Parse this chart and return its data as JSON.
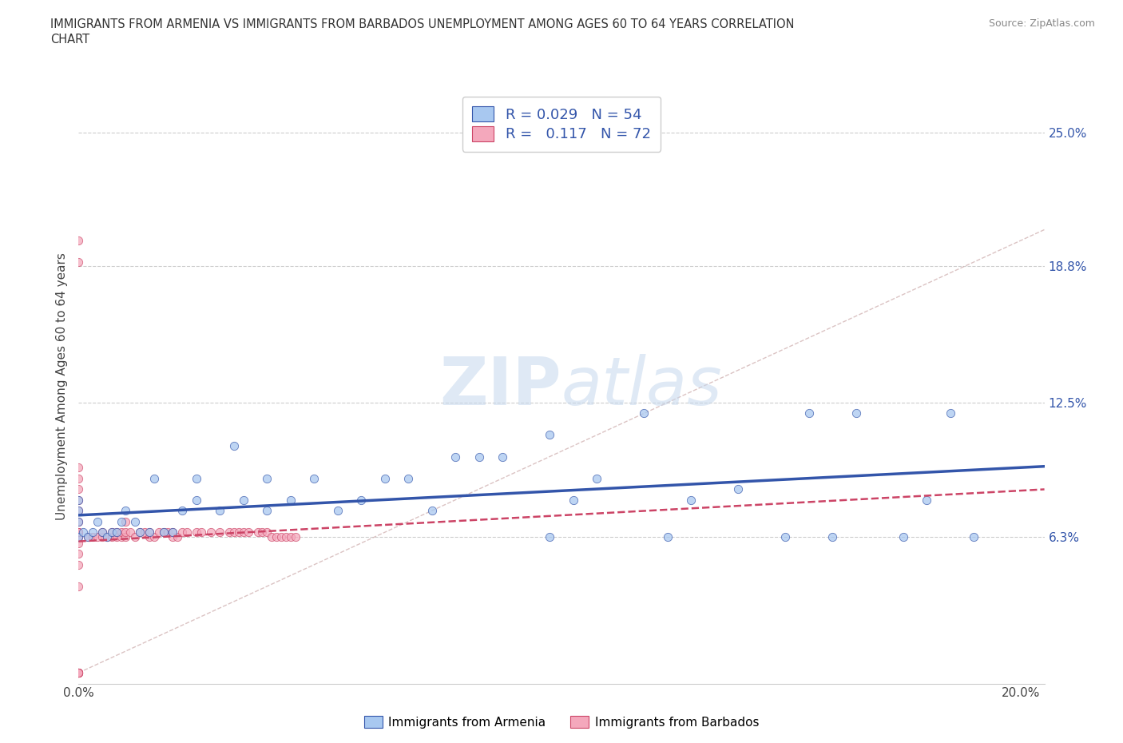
{
  "title_line1": "IMMIGRANTS FROM ARMENIA VS IMMIGRANTS FROM BARBADOS UNEMPLOYMENT AMONG AGES 60 TO 64 YEARS CORRELATION",
  "title_line2": "CHART",
  "source": "Source: ZipAtlas.com",
  "ylabel_label": "Unemployment Among Ages 60 to 64 years",
  "xlim": [
    0.0,
    0.205
  ],
  "ylim": [
    -0.005,
    0.27
  ],
  "xticks": [
    0.0,
    0.05,
    0.1,
    0.15,
    0.2
  ],
  "xticklabels": [
    "0.0%",
    "",
    "",
    "",
    "20.0%"
  ],
  "ytick_positions": [
    0.063,
    0.125,
    0.188,
    0.25
  ],
  "ytick_labels": [
    "6.3%",
    "12.5%",
    "18.8%",
    "25.0%"
  ],
  "grid_color": "#cccccc",
  "background_color": "#ffffff",
  "armenia_color": "#a8c8f0",
  "barbados_color": "#f4a8bc",
  "armenia_line_color": "#3355aa",
  "barbados_line_color": "#cc4466",
  "R_armenia": "0.029",
  "N_armenia": "54",
  "R_barbados": "0.117",
  "N_barbados": "72",
  "legend_label_armenia": "Immigrants from Armenia",
  "legend_label_barbados": "Immigrants from Barbados",
  "armenia_x": [
    0.0,
    0.0,
    0.0,
    0.0,
    0.001,
    0.002,
    0.003,
    0.004,
    0.005,
    0.006,
    0.007,
    0.008,
    0.009,
    0.01,
    0.012,
    0.013,
    0.015,
    0.016,
    0.018,
    0.02,
    0.022,
    0.025,
    0.025,
    0.03,
    0.033,
    0.035,
    0.04,
    0.04,
    0.045,
    0.05,
    0.055,
    0.06,
    0.065,
    0.07,
    0.075,
    0.08,
    0.085,
    0.09,
    0.1,
    0.1,
    0.105,
    0.11,
    0.12,
    0.125,
    0.13,
    0.14,
    0.15,
    0.155,
    0.16,
    0.165,
    0.175,
    0.18,
    0.185,
    0.19
  ],
  "armenia_y": [
    0.063,
    0.07,
    0.075,
    0.08,
    0.065,
    0.063,
    0.065,
    0.07,
    0.065,
    0.063,
    0.065,
    0.065,
    0.07,
    0.075,
    0.07,
    0.065,
    0.065,
    0.09,
    0.065,
    0.065,
    0.075,
    0.09,
    0.08,
    0.075,
    0.105,
    0.08,
    0.075,
    0.09,
    0.08,
    0.09,
    0.075,
    0.08,
    0.09,
    0.09,
    0.075,
    0.1,
    0.1,
    0.1,
    0.11,
    0.063,
    0.08,
    0.09,
    0.12,
    0.063,
    0.08,
    0.085,
    0.063,
    0.12,
    0.063,
    0.12,
    0.063,
    0.08,
    0.12,
    0.063
  ],
  "barbados_x": [
    0.0,
    0.0,
    0.0,
    0.0,
    0.0,
    0.0,
    0.0,
    0.0,
    0.0,
    0.0,
    0.0,
    0.0,
    0.0,
    0.0,
    0.0,
    0.0,
    0.0,
    0.0,
    0.0,
    0.0,
    0.0,
    0.0,
    0.0,
    0.0,
    0.002,
    0.003,
    0.004,
    0.005,
    0.005,
    0.006,
    0.007,
    0.007,
    0.008,
    0.008,
    0.009,
    0.009,
    0.01,
    0.01,
    0.01,
    0.011,
    0.012,
    0.013,
    0.014,
    0.015,
    0.015,
    0.016,
    0.017,
    0.018,
    0.019,
    0.02,
    0.02,
    0.021,
    0.022,
    0.023,
    0.025,
    0.026,
    0.028,
    0.03,
    0.032,
    0.033,
    0.034,
    0.035,
    0.036,
    0.038,
    0.039,
    0.04,
    0.041,
    0.042,
    0.043,
    0.044,
    0.045,
    0.046
  ],
  "barbados_y": [
    0.0,
    0.0,
    0.0,
    0.0,
    0.0,
    0.0,
    0.0,
    0.04,
    0.05,
    0.055,
    0.06,
    0.063,
    0.063,
    0.065,
    0.065,
    0.065,
    0.07,
    0.075,
    0.08,
    0.085,
    0.09,
    0.095,
    0.2,
    0.19,
    0.063,
    0.063,
    0.063,
    0.063,
    0.065,
    0.063,
    0.063,
    0.065,
    0.063,
    0.065,
    0.063,
    0.065,
    0.063,
    0.065,
    0.07,
    0.065,
    0.063,
    0.065,
    0.065,
    0.063,
    0.065,
    0.063,
    0.065,
    0.065,
    0.065,
    0.063,
    0.065,
    0.063,
    0.065,
    0.065,
    0.065,
    0.065,
    0.065,
    0.065,
    0.065,
    0.065,
    0.065,
    0.065,
    0.065,
    0.065,
    0.065,
    0.065,
    0.063,
    0.063,
    0.063,
    0.063,
    0.063,
    0.063
  ]
}
